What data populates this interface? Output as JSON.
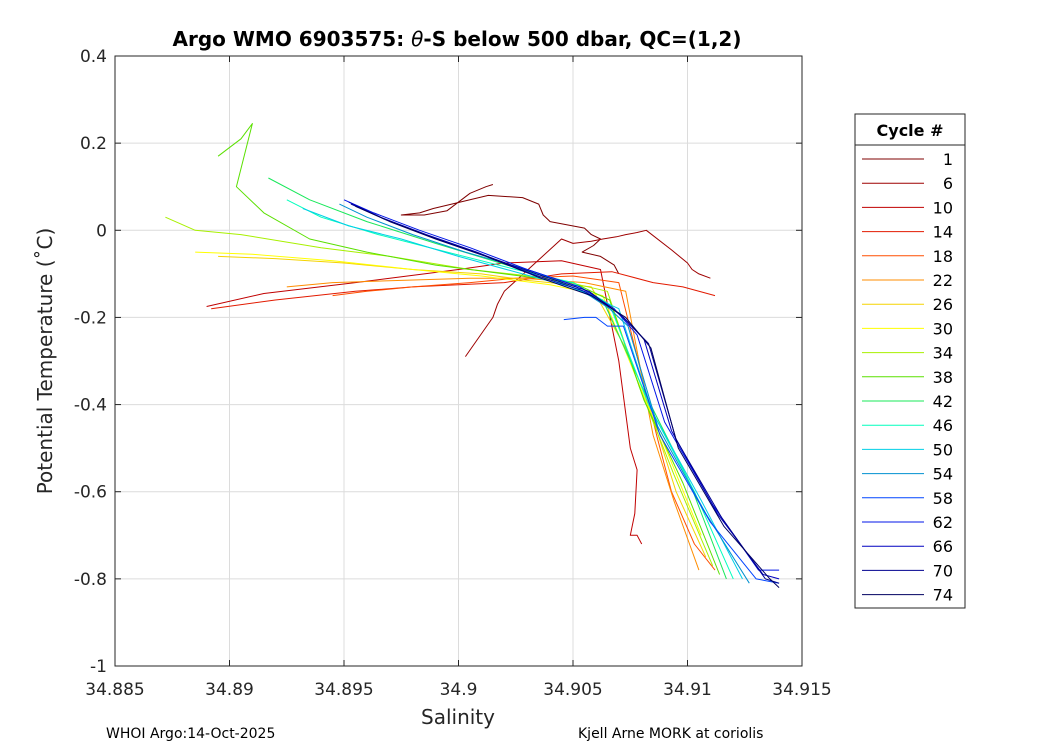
{
  "chart_data": {
    "type": "line",
    "title": "Argo WMO 6903575: θ-S below 500 dbar,  QC=(1,2)",
    "title_prefix": "Argo WMO 6903575: ",
    "title_theta": "θ",
    "title_suffix": "-S below 500 dbar,  QC=(1,2)",
    "xlabel": "Salinity",
    "ylabel": "Potential Temperature (˚C)",
    "xlim": [
      34.885,
      34.915
    ],
    "ylim": [
      -1,
      0.4
    ],
    "x_ticks": [
      "34.885",
      "34.89",
      "34.895",
      "34.9",
      "34.905",
      "34.91",
      "34.915"
    ],
    "x_tick_values": [
      34.885,
      34.89,
      34.895,
      34.9,
      34.905,
      34.91,
      34.915
    ],
    "y_ticks": [
      "0.4",
      "0.2",
      "0",
      "-0.2",
      "-0.4",
      "-0.6",
      "-0.8",
      "-1"
    ],
    "y_tick_values": [
      0.4,
      0.2,
      0,
      -0.2,
      -0.4,
      -0.6,
      -0.8,
      -1
    ],
    "grid": true,
    "legend_position": "right",
    "legend_title": "Cycle #",
    "series": [
      {
        "name": "1",
        "color": "#7f0000",
        "x": [
          34.9015,
          34.9012,
          34.9005,
          34.8995,
          34.8985,
          34.8975,
          34.8983,
          34.8989,
          34.9013,
          34.9028,
          34.9035,
          34.9037,
          34.9039,
          34.904,
          34.9055,
          34.9058,
          34.9062,
          34.9059,
          34.9054,
          34.9062,
          34.9068,
          34.907
        ],
        "y": [
          0.105,
          0.1,
          0.085,
          0.045,
          0.035,
          0.035,
          0.04,
          0.05,
          0.08,
          0.075,
          0.06,
          0.035,
          0.025,
          0.02,
          0.005,
          -0.01,
          -0.02,
          -0.035,
          -0.05,
          -0.06,
          -0.08,
          -0.1
        ]
      },
      {
        "name": "6",
        "color": "#9e0000",
        "x": [
          34.9003,
          34.9007,
          34.9011,
          34.9015,
          34.9017,
          34.902,
          34.9045,
          34.905,
          34.9058,
          34.9063,
          34.9069,
          34.9073,
          34.9078,
          34.9082,
          34.9093,
          34.91,
          34.9102,
          34.9105,
          34.911
        ],
        "y": [
          -0.29,
          -0.26,
          -0.23,
          -0.2,
          -0.17,
          -0.14,
          -0.02,
          -0.03,
          -0.025,
          -0.02,
          -0.015,
          -0.01,
          -0.005,
          -0.0,
          -0.045,
          -0.075,
          -0.09,
          -0.1,
          -0.11
        ]
      },
      {
        "name": "10",
        "color": "#c00000",
        "x": [
          34.889,
          34.8915,
          34.8955,
          34.897,
          34.8985,
          34.9,
          34.902,
          34.9045,
          34.9062,
          34.907,
          34.9075,
          34.9078,
          34.9077,
          34.9075,
          34.9078,
          34.908
        ],
        "y": [
          -0.175,
          -0.145,
          -0.12,
          -0.11,
          -0.1,
          -0.09,
          -0.075,
          -0.07,
          -0.09,
          -0.3,
          -0.5,
          -0.55,
          -0.65,
          -0.7,
          -0.7,
          -0.72
        ]
      },
      {
        "name": "14",
        "color": "#e21a00",
        "x": [
          34.8892,
          34.892,
          34.8955,
          34.898,
          34.902,
          34.9045,
          34.9067,
          34.9085,
          34.9098,
          34.9112
        ],
        "y": [
          -0.18,
          -0.16,
          -0.14,
          -0.13,
          -0.12,
          -0.1,
          -0.095,
          -0.12,
          -0.13,
          -0.15
        ]
      },
      {
        "name": "18",
        "color": "#ff4f00",
        "x": [
          34.8945,
          34.896,
          34.898,
          34.9005,
          34.9025,
          34.905,
          34.907,
          34.9087,
          34.9093,
          34.9103,
          34.9112
        ],
        "y": [
          -0.15,
          -0.14,
          -0.13,
          -0.12,
          -0.11,
          -0.105,
          -0.12,
          -0.48,
          -0.6,
          -0.72,
          -0.78
        ]
      },
      {
        "name": "22",
        "color": "#ff8d00",
        "x": [
          34.8925,
          34.8945,
          34.8975,
          34.9005,
          34.9028,
          34.9055,
          34.9073,
          34.9085,
          34.9094,
          34.9105
        ],
        "y": [
          -0.13,
          -0.12,
          -0.115,
          -0.11,
          -0.11,
          -0.12,
          -0.14,
          -0.47,
          -0.62,
          -0.78
        ]
      },
      {
        "name": "26",
        "color": "#f5d300",
        "x": [
          34.8895,
          34.892,
          34.895,
          34.898,
          34.901,
          34.903,
          34.9058,
          34.9074,
          34.9083,
          34.9095,
          34.9108
        ],
        "y": [
          -0.06,
          -0.065,
          -0.075,
          -0.09,
          -0.1,
          -0.115,
          -0.13,
          -0.28,
          -0.4,
          -0.6,
          -0.75
        ]
      },
      {
        "name": "30",
        "color": "#ffff00",
        "x": [
          34.8885,
          34.891,
          34.8945,
          34.898,
          34.901,
          34.904,
          34.9063,
          34.9077,
          34.9092,
          34.9106
        ],
        "y": [
          -0.05,
          -0.055,
          -0.07,
          -0.09,
          -0.105,
          -0.125,
          -0.15,
          -0.33,
          -0.52,
          -0.7
        ]
      },
      {
        "name": "34",
        "color": "#a8f000",
        "x": [
          34.8872,
          34.8885,
          34.8905,
          34.894,
          34.897,
          34.9005,
          34.904,
          34.9065,
          34.9079,
          34.9094,
          34.9111
        ],
        "y": [
          0.03,
          0.0,
          -0.01,
          -0.04,
          -0.06,
          -0.09,
          -0.11,
          -0.14,
          -0.36,
          -0.56,
          -0.77
        ]
      },
      {
        "name": "38",
        "color": "#5ae000",
        "x": [
          34.8895,
          34.8905,
          34.891,
          34.8903,
          34.8915,
          34.8935,
          34.896,
          34.899,
          34.902,
          34.905,
          34.9066,
          34.9081,
          34.9098,
          34.9114
        ],
        "y": [
          0.17,
          0.21,
          0.245,
          0.1,
          0.04,
          -0.02,
          -0.05,
          -0.08,
          -0.1,
          -0.12,
          -0.16,
          -0.39,
          -0.58,
          -0.79
        ]
      },
      {
        "name": "42",
        "color": "#18e85a",
        "x": [
          34.8917,
          34.8935,
          34.896,
          34.899,
          34.9015,
          34.904,
          34.9063,
          34.9082,
          34.9101,
          34.9117
        ],
        "y": [
          0.12,
          0.07,
          0.02,
          -0.03,
          -0.07,
          -0.11,
          -0.16,
          -0.38,
          -0.58,
          -0.8
        ]
      },
      {
        "name": "46",
        "color": "#00ffbd",
        "x": [
          34.8925,
          34.894,
          34.8965,
          34.8995,
          34.9025,
          34.905,
          34.9066,
          34.9083,
          34.9103,
          34.912
        ],
        "y": [
          0.07,
          0.03,
          -0.01,
          -0.05,
          -0.09,
          -0.12,
          -0.17,
          -0.4,
          -0.6,
          -0.8
        ]
      },
      {
        "name": "50",
        "color": "#00cfe6",
        "x": [
          34.8932,
          34.8952,
          34.8975,
          34.9,
          34.9028,
          34.9049,
          34.907,
          34.9085,
          34.9106,
          34.9124
        ],
        "y": [
          0.05,
          0.01,
          -0.02,
          -0.06,
          -0.1,
          -0.13,
          -0.18,
          -0.42,
          -0.62,
          -0.8
        ]
      },
      {
        "name": "54",
        "color": "#0090d0",
        "x": [
          34.8948,
          34.896,
          34.898,
          34.9003,
          34.903,
          34.905,
          34.9066,
          34.9074,
          34.9087,
          34.9108,
          34.9127
        ],
        "y": [
          0.06,
          0.03,
          -0.01,
          -0.05,
          -0.09,
          -0.125,
          -0.18,
          -0.22,
          -0.45,
          -0.65,
          -0.81
        ]
      },
      {
        "name": "58",
        "color": "#0045ff",
        "x": [
          34.9046,
          34.9055,
          34.906,
          34.9065,
          34.9072,
          34.9088,
          34.911,
          34.913,
          34.914
        ],
        "y": [
          -0.205,
          -0.2,
          -0.2,
          -0.22,
          -0.22,
          -0.47,
          -0.67,
          -0.8,
          -0.81
        ]
      },
      {
        "name": "62",
        "color": "#0015e8",
        "x": [
          34.895,
          34.8963,
          34.8983,
          34.9005,
          34.903,
          34.9053,
          34.9068,
          34.9078,
          34.909,
          34.9111,
          34.9131,
          34.914
        ],
        "y": [
          0.07,
          0.04,
          0.0,
          -0.04,
          -0.09,
          -0.13,
          -0.18,
          -0.24,
          -0.44,
          -0.63,
          -0.78,
          -0.78
        ]
      },
      {
        "name": "66",
        "color": "#0000c0",
        "x": [
          34.8952,
          34.8966,
          34.8986,
          34.9008,
          34.9032,
          34.9055,
          34.907,
          34.9081,
          34.9093,
          34.9113,
          34.9133,
          34.914
        ],
        "y": [
          0.065,
          0.03,
          -0.01,
          -0.05,
          -0.1,
          -0.14,
          -0.19,
          -0.25,
          -0.46,
          -0.65,
          -0.79,
          -0.8
        ]
      },
      {
        "name": "70",
        "color": "#00008f",
        "x": [
          34.8953,
          34.8968,
          34.8988,
          34.901,
          34.9034,
          34.9057,
          34.9072,
          34.9083,
          34.9095,
          34.9115,
          34.9134,
          34.914
        ],
        "y": [
          0.06,
          0.025,
          -0.015,
          -0.055,
          -0.1,
          -0.14,
          -0.2,
          -0.26,
          -0.48,
          -0.66,
          -0.8,
          -0.81
        ]
      },
      {
        "name": "74",
        "color": "#000060",
        "x": [
          34.8955,
          34.897,
          34.899,
          34.9012,
          34.9036,
          34.9058,
          34.9073,
          34.9084,
          34.9096,
          34.9116,
          34.9136,
          34.914
        ],
        "y": [
          0.055,
          0.02,
          -0.02,
          -0.06,
          -0.11,
          -0.15,
          -0.2,
          -0.27,
          -0.5,
          -0.68,
          -0.8,
          -0.82
        ]
      }
    ]
  },
  "footer": {
    "left": "WHOI Argo:14-Oct-2025",
    "right": "Kjell Arne MORK at coriolis"
  }
}
